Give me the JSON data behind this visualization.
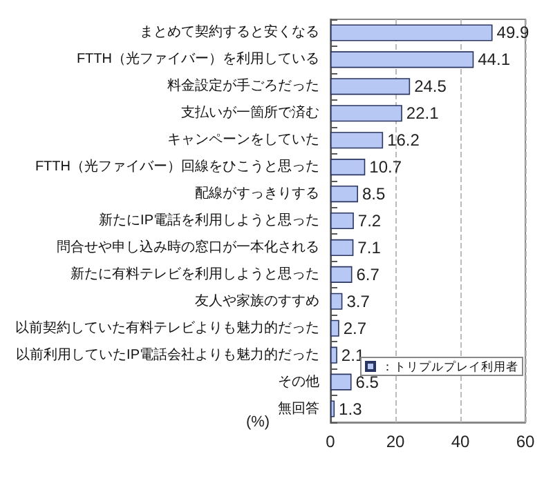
{
  "chart_data": {
    "type": "bar",
    "orientation": "horizontal",
    "xlabel": "(%)",
    "categories": [
      "まとめて契約すると安くなる",
      "FTTH（光ファイバー）を利用している",
      "料金設定が手ごろだった",
      "支払いが一箇所で済む",
      "キャンペーンをしていた",
      "FTTH（光ファイバー）回線をひこうと思った",
      "配線がすっきりする",
      "新たにIP電話を利用しようと思った",
      "問合せや申し込み時の窓口が一本化される",
      "新たに有料テレビを利用しようと思った",
      "友人や家族のすすめ",
      "以前契約していた有料テレビよりも魅力的だった",
      "以前利用していたIP電話会社よりも魅力的だった",
      "その他",
      "無回答"
    ],
    "series": [
      {
        "name": "：トリプルプレイ利用者",
        "color": "#b8c8f4",
        "values": [
          49.9,
          44.1,
          24.5,
          22.1,
          16.2,
          10.7,
          8.5,
          7.2,
          7.1,
          6.7,
          3.7,
          2.7,
          2.1,
          6.5,
          1.3
        ]
      }
    ],
    "xlim": [
      0,
      60
    ],
    "xticks": [
      0,
      20,
      40,
      60
    ],
    "grid": "x",
    "legend": "bottom right",
    "data_labels": true
  }
}
